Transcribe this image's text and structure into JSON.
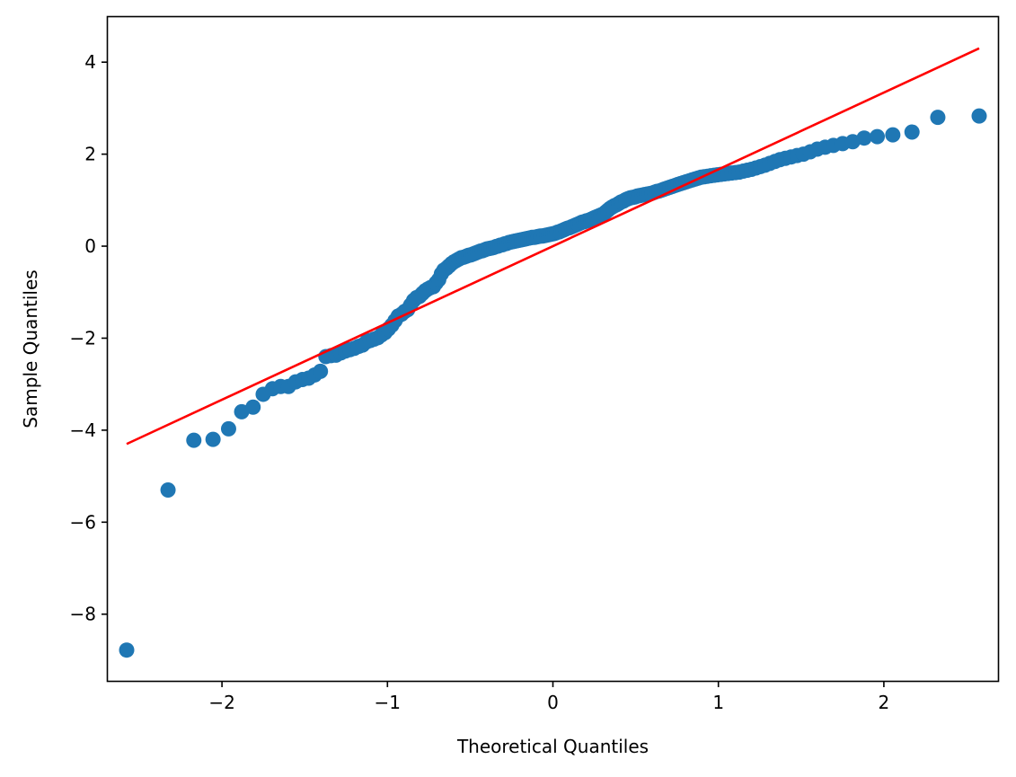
{
  "chart_data": {
    "type": "scatter",
    "xlabel": "Theoretical Quantiles",
    "ylabel": "Sample Quantiles",
    "xlim": [
      -2.69,
      2.69
    ],
    "ylim": [
      -9.45,
      4.98
    ],
    "grid": false,
    "x_ticks": [
      -2,
      -1,
      0,
      1,
      2
    ],
    "y_ticks": [
      -8,
      -6,
      -4,
      -2,
      0,
      2,
      4
    ],
    "x_tick_labels": [
      "−2",
      "−1",
      "0",
      "1",
      "2"
    ],
    "y_tick_labels": [
      "−8",
      "−6",
      "−4",
      "−2",
      "0",
      "2",
      "4"
    ],
    "colors": {
      "points": "#1f77b4",
      "reference_line": "#ff0000"
    },
    "series": [
      {
        "type": "scatter",
        "x": [
          -2.576,
          -2.326,
          -2.17,
          -2.054,
          -1.96,
          -1.881,
          -1.812,
          -1.751,
          -1.695,
          -1.645,
          -1.598,
          -1.555,
          -1.514,
          -1.476,
          -1.44,
          -1.405,
          -1.372,
          -1.341,
          -1.311,
          -1.282,
          -1.254,
          -1.227,
          -1.2,
          -1.175,
          -1.15,
          -1.126,
          -1.103,
          -1.08,
          -1.058,
          -1.036,
          -1.015,
          -0.994,
          -0.974,
          -0.954,
          -0.935,
          -0.915,
          -0.896,
          -0.878,
          -0.86,
          -0.842,
          -0.824,
          -0.806,
          -0.789,
          -0.772,
          -0.755,
          -0.739,
          -0.722,
          -0.706,
          -0.69,
          -0.674,
          -0.659,
          -0.643,
          -0.628,
          -0.613,
          -0.598,
          -0.583,
          -0.568,
          -0.553,
          -0.539,
          -0.524,
          -0.51,
          -0.496,
          -0.482,
          -0.468,
          -0.454,
          -0.44,
          -0.426,
          -0.412,
          -0.399,
          -0.385,
          -0.372,
          -0.358,
          -0.345,
          -0.332,
          -0.319,
          -0.305,
          -0.292,
          -0.279,
          -0.266,
          -0.253,
          -0.24,
          -0.228,
          -0.215,
          -0.202,
          -0.189,
          -0.176,
          -0.164,
          -0.151,
          -0.138,
          -0.126,
          -0.113,
          -0.1,
          -0.088,
          -0.075,
          -0.063,
          -0.05,
          -0.038,
          -0.025,
          -0.013,
          0.0,
          0.013,
          0.025,
          0.038,
          0.05,
          0.063,
          0.075,
          0.088,
          0.1,
          0.113,
          0.126,
          0.138,
          0.151,
          0.164,
          0.176,
          0.189,
          0.202,
          0.215,
          0.228,
          0.24,
          0.253,
          0.266,
          0.279,
          0.292,
          0.305,
          0.319,
          0.332,
          0.345,
          0.358,
          0.372,
          0.385,
          0.399,
          0.412,
          0.426,
          0.44,
          0.454,
          0.468,
          0.482,
          0.496,
          0.51,
          0.524,
          0.539,
          0.553,
          0.568,
          0.583,
          0.598,
          0.613,
          0.628,
          0.643,
          0.659,
          0.674,
          0.69,
          0.706,
          0.722,
          0.739,
          0.755,
          0.772,
          0.789,
          0.806,
          0.824,
          0.842,
          0.86,
          0.878,
          0.896,
          0.915,
          0.935,
          0.954,
          0.974,
          0.994,
          1.015,
          1.036,
          1.058,
          1.08,
          1.103,
          1.126,
          1.15,
          1.175,
          1.2,
          1.227,
          1.254,
          1.282,
          1.311,
          1.341,
          1.372,
          1.405,
          1.44,
          1.476,
          1.514,
          1.555,
          1.598,
          1.645,
          1.695,
          1.751,
          1.812,
          1.881,
          1.96,
          2.054,
          2.17,
          2.326,
          2.576
        ],
        "y": [
          -8.78,
          -5.3,
          -4.22,
          -4.2,
          -3.97,
          -3.6,
          -3.5,
          -3.22,
          -3.1,
          -3.05,
          -3.05,
          -2.95,
          -2.9,
          -2.87,
          -2.8,
          -2.72,
          -2.4,
          -2.38,
          -2.37,
          -2.32,
          -2.28,
          -2.25,
          -2.22,
          -2.18,
          -2.15,
          -2.08,
          -2.05,
          -2.02,
          -1.99,
          -1.93,
          -1.88,
          -1.8,
          -1.72,
          -1.62,
          -1.52,
          -1.48,
          -1.42,
          -1.38,
          -1.28,
          -1.18,
          -1.12,
          -1.09,
          -1.03,
          -0.97,
          -0.93,
          -0.9,
          -0.88,
          -0.8,
          -0.73,
          -0.6,
          -0.52,
          -0.48,
          -0.43,
          -0.38,
          -0.34,
          -0.31,
          -0.28,
          -0.25,
          -0.24,
          -0.22,
          -0.2,
          -0.19,
          -0.17,
          -0.15,
          -0.13,
          -0.11,
          -0.1,
          -0.08,
          -0.06,
          -0.05,
          -0.04,
          -0.03,
          -0.01,
          0.0,
          0.02,
          0.03,
          0.05,
          0.06,
          0.08,
          0.09,
          0.1,
          0.11,
          0.12,
          0.13,
          0.14,
          0.15,
          0.16,
          0.17,
          0.18,
          0.19,
          0.19,
          0.2,
          0.21,
          0.22,
          0.22,
          0.23,
          0.24,
          0.25,
          0.26,
          0.27,
          0.28,
          0.3,
          0.31,
          0.33,
          0.35,
          0.37,
          0.39,
          0.4,
          0.42,
          0.44,
          0.46,
          0.48,
          0.5,
          0.52,
          0.53,
          0.55,
          0.56,
          0.58,
          0.6,
          0.62,
          0.64,
          0.66,
          0.68,
          0.7,
          0.74,
          0.78,
          0.82,
          0.85,
          0.88,
          0.9,
          0.93,
          0.96,
          0.98,
          1.01,
          1.03,
          1.05,
          1.06,
          1.07,
          1.09,
          1.1,
          1.11,
          1.12,
          1.13,
          1.14,
          1.15,
          1.17,
          1.19,
          1.2,
          1.22,
          1.24,
          1.26,
          1.28,
          1.3,
          1.32,
          1.34,
          1.36,
          1.38,
          1.4,
          1.42,
          1.44,
          1.46,
          1.48,
          1.5,
          1.51,
          1.52,
          1.53,
          1.54,
          1.55,
          1.56,
          1.57,
          1.58,
          1.59,
          1.6,
          1.61,
          1.63,
          1.65,
          1.67,
          1.7,
          1.73,
          1.76,
          1.8,
          1.84,
          1.88,
          1.91,
          1.94,
          1.97,
          2.0,
          2.05,
          2.11,
          2.15,
          2.19,
          2.23,
          2.27,
          2.35,
          2.38,
          2.42,
          2.48,
          2.8,
          2.83
        ]
      },
      {
        "type": "line",
        "x": [
          -2.576,
          2.576
        ],
        "y": [
          -4.3,
          4.3
        ]
      }
    ]
  }
}
